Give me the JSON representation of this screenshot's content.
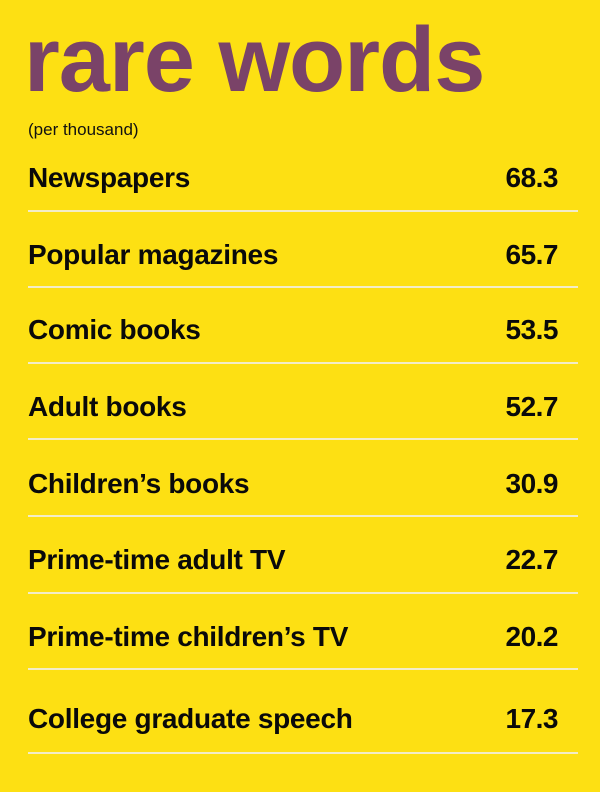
{
  "chart_data": {
    "type": "table",
    "title": "rare words",
    "subtitle": "(per thousand)",
    "categories": [
      "Newspapers",
      "Popular magazines",
      "Comic books",
      "Adult books",
      "Children’s books",
      "Prime-time adult TV",
      "Prime-time children’s TV",
      "College graduate speech"
    ],
    "values": [
      "68.3",
      "65.7",
      "53.5",
      "52.7",
      "30.9",
      "22.7",
      "20.2",
      "17.3"
    ]
  },
  "colors": {
    "background": "#FDE013",
    "title": "#7A4368",
    "text": "#0a0a0a",
    "rule": "#F3EDC8"
  }
}
